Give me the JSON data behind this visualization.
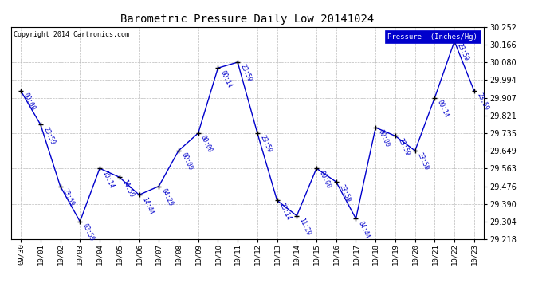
{
  "title": "Barometric Pressure Daily Low 20141024",
  "copyright_text": "Copyright 2014 Cartronics.com",
  "legend_label": "Pressure  (Inches/Hg)",
  "line_color": "#0000cc",
  "marker_color": "#000000",
  "background_color": "#ffffff",
  "grid_color": "#bbbbbb",
  "ylim": [
    29.218,
    30.252
  ],
  "yticks": [
    29.218,
    29.304,
    29.39,
    29.476,
    29.563,
    29.649,
    29.735,
    29.821,
    29.907,
    29.994,
    30.08,
    30.166,
    30.252
  ],
  "data_points": [
    {
      "date": "09/30",
      "time": "00:00",
      "value": 29.94
    },
    {
      "date": "10/01",
      "time": "23:59",
      "value": 29.776
    },
    {
      "date": "10/02",
      "time": "23:59",
      "value": 29.476
    },
    {
      "date": "10/03",
      "time": "03:59",
      "value": 29.304
    },
    {
      "date": "10/04",
      "time": "10:14",
      "value": 29.563
    },
    {
      "date": "10/05",
      "time": "14:59",
      "value": 29.52
    },
    {
      "date": "10/06",
      "time": "14:44",
      "value": 29.434
    },
    {
      "date": "10/07",
      "time": "04:29",
      "value": 29.476
    },
    {
      "date": "10/08",
      "time": "00:00",
      "value": 29.649
    },
    {
      "date": "10/09",
      "time": "00:00",
      "value": 29.735
    },
    {
      "date": "10/10",
      "time": "00:14",
      "value": 30.052
    },
    {
      "date": "10/11",
      "time": "23:59",
      "value": 30.08
    },
    {
      "date": "10/12",
      "time": "23:59",
      "value": 29.735
    },
    {
      "date": "10/13",
      "time": "23:14",
      "value": 29.407
    },
    {
      "date": "10/14",
      "time": "11:29",
      "value": 29.332
    },
    {
      "date": "10/15",
      "time": "00:00",
      "value": 29.563
    },
    {
      "date": "10/16",
      "time": "23:59",
      "value": 29.497
    },
    {
      "date": "10/17",
      "time": "04:44",
      "value": 29.318
    },
    {
      "date": "10/18",
      "time": "00:00",
      "value": 29.762
    },
    {
      "date": "10/19",
      "time": "23:59",
      "value": 29.721
    },
    {
      "date": "10/20",
      "time": "23:59",
      "value": 29.649
    },
    {
      "date": "10/21",
      "time": "00:14",
      "value": 29.907
    },
    {
      "date": "10/22",
      "time": "23:59",
      "value": 30.182
    },
    {
      "date": "10/23",
      "time": "23:59",
      "value": 29.94
    }
  ]
}
